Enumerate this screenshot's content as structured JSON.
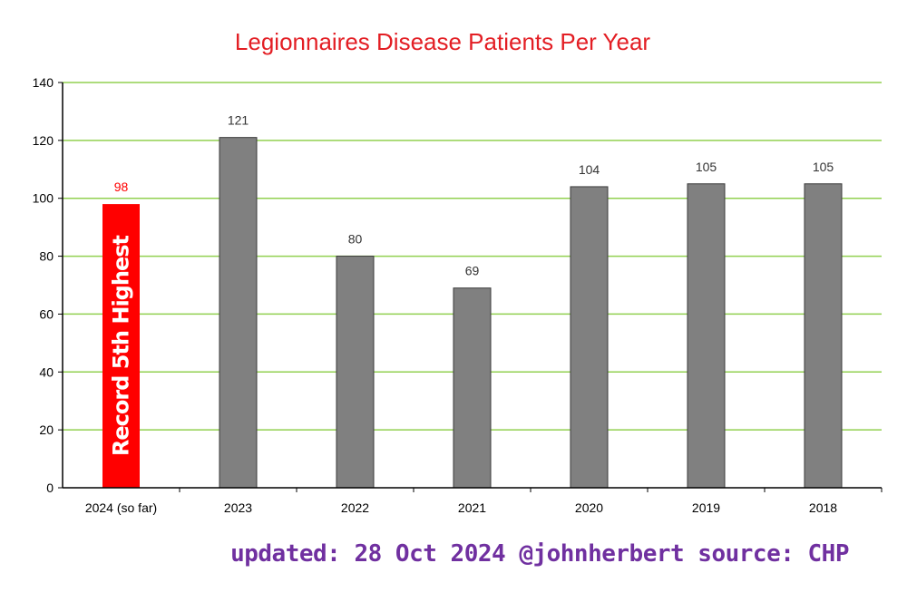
{
  "chart_data": {
    "type": "bar",
    "title": "Legionnaires Disease Patients Per Year",
    "categories": [
      "2024 (so far)",
      "2023",
      "2022",
      "2021",
      "2020",
      "2019",
      "2018"
    ],
    "values": [
      98,
      121,
      80,
      69,
      104,
      105,
      105
    ],
    "data_labels": [
      "98",
      "121",
      "80",
      "69",
      "104",
      "105",
      "105"
    ],
    "highlight_index": 0,
    "highlight_annotation": "Record 5th Highest",
    "ylim": [
      0,
      140
    ],
    "yticks": [
      0,
      20,
      40,
      60,
      80,
      100,
      120,
      140
    ],
    "grid": true,
    "xlabel": "",
    "ylabel": ""
  },
  "colors": {
    "title": "#e31e24",
    "bar": "#808080",
    "highlight_bar": "#ff0000",
    "grid": "#92d050",
    "footer": "#7030a0"
  },
  "footer": "updated: 28 Oct 2024 @johnherbert source: CHP"
}
